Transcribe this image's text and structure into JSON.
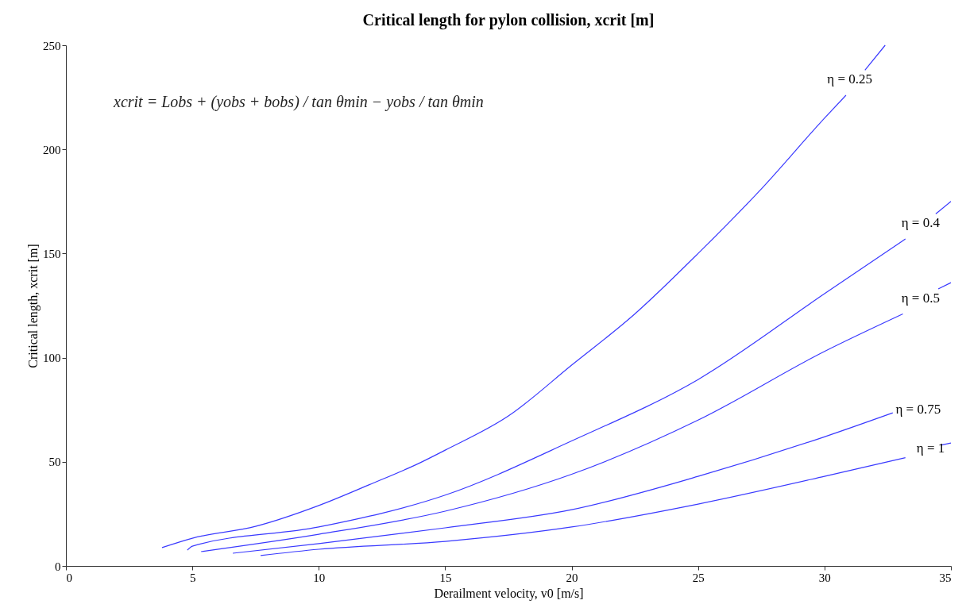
{
  "chart_data": {
    "type": "line",
    "title": "Critical length for pylon collision, xcrit [m]",
    "xlabel": "Derailment velocity, v0 [m/s]",
    "ylabel": "Critical length, xcrit [m]",
    "xlim": [
      0,
      35
    ],
    "ylim": [
      0,
      250
    ],
    "xticks": [
      0,
      5,
      10,
      15,
      20,
      25,
      30,
      35
    ],
    "yticks": [
      0,
      50,
      100,
      150,
      200,
      250
    ],
    "grid": false,
    "marker": "none",
    "line_style": "solid",
    "series": [
      {
        "color": "#3a3aff",
        "x": [
          3.8,
          5,
          7.5,
          10,
          12,
          14,
          15,
          17.5,
          20,
          22.5,
          25,
          27.5,
          30,
          30.85,
          31.0,
          31.6,
          32.4
        ],
        "values": [
          8.8,
          13.3,
          19,
          29,
          39,
          49.5,
          55.6,
          72,
          96.4,
          121,
          150,
          181,
          215,
          226,
          null,
          238,
          250
        ]
      },
      {
        "color": "#3a3aff",
        "x": [
          4.8,
          5,
          10,
          15,
          20,
          25,
          30,
          33.2,
          33.8,
          34.4,
          35
        ],
        "values": [
          7.6,
          9.5,
          18.7,
          34,
          60,
          89.5,
          130.7,
          157,
          null,
          169,
          175
        ]
      },
      {
        "color": "#3a3aff",
        "x": [
          5.35,
          10,
          15,
          20,
          25,
          30,
          33.1,
          33.8,
          34.5,
          35
        ],
        "values": [
          6.9,
          15.2,
          26.3,
          44,
          70,
          103,
          121,
          null,
          133,
          136
        ]
      },
      {
        "color": "#3a3aff",
        "x": [
          6.6,
          10,
          15,
          20,
          25,
          30,
          32.7
        ],
        "values": [
          6.1,
          10.7,
          18.3,
          27,
          43,
          62,
          73.5
        ]
      },
      {
        "color": "#3a3aff",
        "x": [
          7.7,
          10,
          15,
          20,
          25,
          30,
          33.2,
          34.2,
          34.6,
          35
        ],
        "values": [
          5.0,
          8,
          11.8,
          18.7,
          29.7,
          43,
          52,
          null,
          58,
          59
        ]
      }
    ],
    "annotations": [
      "η = 0.25",
      "η = 0.4",
      "η = 0.5",
      "η = 0.75",
      "η = 1",
      "xcrit = Lobs + (yobs + bobs) / tan θmin − yobs / tan θmin"
    ]
  }
}
